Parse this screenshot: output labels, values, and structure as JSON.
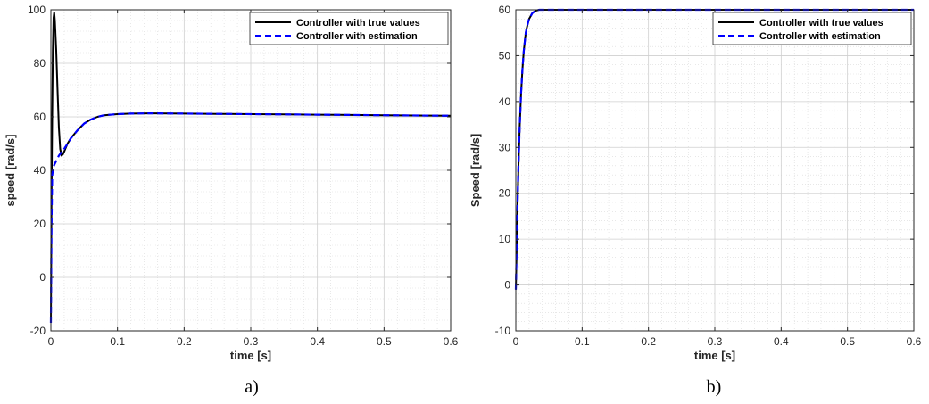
{
  "chart_data": [
    {
      "type": "line",
      "caption": "a)",
      "xlabel": "time [s]",
      "ylabel": "speed [rad/s]",
      "xlim": [
        0,
        0.6
      ],
      "ylim": [
        -20,
        100
      ],
      "xticks": [
        "0",
        "0.1",
        "0.2",
        "0.3",
        "0.4",
        "0.5",
        "0.6"
      ],
      "yticks": [
        "-20",
        "0",
        "20",
        "40",
        "60",
        "80",
        "100"
      ],
      "grid": true,
      "minor_grid": true,
      "legend_position": "top-right",
      "series": [
        {
          "name": "Controller with true values",
          "color": "#000000",
          "style": "solid",
          "x": [
            0,
            0.001,
            0.002,
            0.003,
            0.004,
            0.005,
            0.006,
            0.008,
            0.01,
            0.012,
            0.014,
            0.016,
            0.018,
            0.02,
            0.025,
            0.03,
            0.04,
            0.05,
            0.06,
            0.07,
            0.08,
            0.1,
            0.12,
            0.15,
            0.2,
            0.25,
            0.3,
            0.35,
            0.4,
            0.45,
            0.5,
            0.55,
            0.6
          ],
          "y": [
            -17,
            30,
            60,
            85,
            97,
            99,
            96,
            85,
            70,
            56,
            48,
            45.5,
            46,
            47,
            50,
            52,
            55,
            57.5,
            59,
            60,
            60.6,
            61,
            61.2,
            61.3,
            61.2,
            61.1,
            61,
            60.9,
            60.8,
            60.7,
            60.6,
            60.5,
            60.4
          ]
        },
        {
          "name": "Controller with estimation",
          "color": "#0000ff",
          "style": "dashed",
          "x": [
            0,
            0.001,
            0.002,
            0.003,
            0.004,
            0.005,
            0.006,
            0.008,
            0.01,
            0.012,
            0.015,
            0.02,
            0.025,
            0.03,
            0.04,
            0.05,
            0.06,
            0.07,
            0.08,
            0.1,
            0.12,
            0.15,
            0.2,
            0.25,
            0.3,
            0.35,
            0.4,
            0.45,
            0.5,
            0.55,
            0.6
          ],
          "y": [
            -17,
            20,
            38,
            40,
            41,
            42,
            42.5,
            43.5,
            44.5,
            45.5,
            46.5,
            48,
            50,
            52,
            55,
            57.5,
            59,
            60,
            60.6,
            61,
            61.2,
            61.3,
            61.2,
            61.1,
            61,
            60.9,
            60.8,
            60.7,
            60.6,
            60.5,
            60.4
          ]
        }
      ]
    },
    {
      "type": "line",
      "caption": "b)",
      "xlabel": "time [s]",
      "ylabel": "Speed [rad/s]",
      "xlim": [
        0,
        0.6
      ],
      "ylim": [
        -10,
        60
      ],
      "xticks": [
        "0",
        "0.1",
        "0.2",
        "0.3",
        "0.4",
        "0.5",
        "0.6"
      ],
      "yticks": [
        "-10",
        "0",
        "10",
        "20",
        "30",
        "40",
        "50",
        "60"
      ],
      "grid": true,
      "minor_grid": true,
      "legend_position": "top-right",
      "series": [
        {
          "name": "Controller with true values",
          "color": "#000000",
          "style": "solid",
          "x": [
            0,
            0.001,
            0.002,
            0.003,
            0.004,
            0.006,
            0.008,
            0.01,
            0.012,
            0.015,
            0.018,
            0.02,
            0.025,
            0.03,
            0.035,
            0.04,
            0.1,
            0.2,
            0.3,
            0.4,
            0.5,
            0.6
          ],
          "y": [
            -1,
            6,
            13,
            20,
            26,
            35,
            42,
            47,
            51,
            55,
            57,
            58,
            59.3,
            59.8,
            60,
            60,
            60,
            60,
            60,
            60,
            60,
            60
          ]
        },
        {
          "name": "Controller with estimation",
          "color": "#0000ff",
          "style": "dashed",
          "x": [
            0,
            0.001,
            0.002,
            0.003,
            0.004,
            0.006,
            0.008,
            0.01,
            0.012,
            0.015,
            0.018,
            0.02,
            0.025,
            0.03,
            0.035,
            0.04,
            0.1,
            0.2,
            0.3,
            0.4,
            0.5,
            0.6
          ],
          "y": [
            -1,
            6,
            13,
            20,
            26,
            35,
            42,
            47,
            51,
            55,
            57,
            58,
            59.3,
            59.8,
            60,
            60,
            60,
            60,
            60,
            60,
            60,
            60
          ]
        }
      ]
    }
  ]
}
